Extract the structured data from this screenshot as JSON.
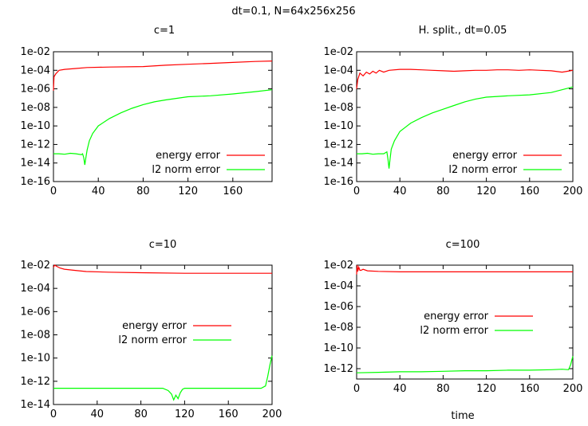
{
  "figure": {
    "suptitle": "dt=0.1, N=64x256x256"
  },
  "chart_data": [
    {
      "type": "line",
      "title": "c=1",
      "xlabel": "",
      "ylabel": "",
      "xlim": [
        0,
        195
      ],
      "ylim_exp": [
        -16,
        -2
      ],
      "yscale": "log",
      "xticks": [
        "0",
        "40",
        "80",
        "120",
        "160"
      ],
      "yticks": [
        "1e-16",
        "1e-14",
        "1e-12",
        "1e-10",
        "1e-08",
        "1e-06",
        "1e-04",
        "1e-02"
      ],
      "legend_position": "bottom-right",
      "series": [
        {
          "name": "energy error",
          "color": "#ff0000",
          "x": [
            0,
            0.5,
            2,
            5,
            10,
            20,
            30,
            50,
            80,
            100,
            120,
            140,
            160,
            180,
            195
          ],
          "log10_y": [
            -6.2,
            -4.7,
            -4.4,
            -4.0,
            -3.9,
            -3.8,
            -3.7,
            -3.65,
            -3.6,
            -3.45,
            -3.35,
            -3.25,
            -3.15,
            -3.05,
            -3.0
          ]
        },
        {
          "name": "l2 norm error",
          "color": "#00ff00",
          "x": [
            0,
            5,
            10,
            15,
            20,
            25,
            26,
            27,
            28,
            29,
            30,
            32,
            35,
            40,
            50,
            60,
            70,
            80,
            90,
            100,
            120,
            140,
            160,
            180,
            195
          ],
          "log10_y": [
            -13.0,
            -13.0,
            -13.05,
            -12.95,
            -13.0,
            -13.1,
            -13.0,
            -13.4,
            -14.2,
            -13.4,
            -12.6,
            -11.6,
            -10.8,
            -10.0,
            -9.2,
            -8.6,
            -8.1,
            -7.7,
            -7.4,
            -7.2,
            -6.85,
            -6.75,
            -6.55,
            -6.3,
            -6.1
          ]
        }
      ]
    },
    {
      "type": "line",
      "title": "H. split., dt=0.05",
      "xlabel": "",
      "ylabel": "",
      "xlim": [
        0,
        200
      ],
      "ylim_exp": [
        -16,
        -2
      ],
      "yscale": "log",
      "xticks": [
        "0",
        "40",
        "80",
        "120",
        "160",
        "200"
      ],
      "yticks": [
        "1e-16",
        "1e-14",
        "1e-12",
        "1e-10",
        "1e-08",
        "1e-06",
        "1e-04",
        "1e-02"
      ],
      "legend_position": "bottom-right",
      "series": [
        {
          "name": "energy error",
          "color": "#ff0000",
          "x": [
            0,
            1,
            3,
            6,
            9,
            12,
            15,
            18,
            21,
            25,
            30,
            40,
            50,
            60,
            70,
            80,
            90,
            100,
            110,
            120,
            130,
            140,
            150,
            160,
            170,
            180,
            190,
            195,
            200
          ],
          "log10_y": [
            -6.0,
            -5.0,
            -4.3,
            -4.6,
            -4.2,
            -4.4,
            -4.1,
            -4.3,
            -4.0,
            -4.2,
            -4.0,
            -3.9,
            -3.9,
            -3.95,
            -4.0,
            -4.05,
            -4.1,
            -4.05,
            -4.0,
            -4.0,
            -3.95,
            -3.95,
            -4.0,
            -3.95,
            -4.0,
            -4.05,
            -4.2,
            -4.1,
            -4.0
          ]
        },
        {
          "name": "l2 norm error",
          "color": "#00ff00",
          "x": [
            0,
            5,
            10,
            15,
            20,
            25,
            28,
            29,
            30,
            31,
            32,
            35,
            40,
            50,
            60,
            70,
            80,
            90,
            100,
            110,
            120,
            140,
            160,
            180,
            200
          ],
          "log10_y": [
            -13.0,
            -13.0,
            -12.95,
            -13.05,
            -13.0,
            -13.0,
            -12.8,
            -13.6,
            -14.6,
            -13.5,
            -12.5,
            -11.6,
            -10.6,
            -9.7,
            -9.1,
            -8.6,
            -8.2,
            -7.8,
            -7.4,
            -7.1,
            -6.9,
            -6.75,
            -6.65,
            -6.4,
            -5.8
          ]
        }
      ]
    },
    {
      "type": "line",
      "title": "c=10",
      "xlabel": "",
      "ylabel": "",
      "xlim": [
        0,
        200
      ],
      "ylim_exp": [
        -14,
        -2
      ],
      "yscale": "log",
      "xticks": [
        "0",
        "40",
        "80",
        "120",
        "160",
        "200"
      ],
      "yticks": [
        "1e-14",
        "1e-12",
        "1e-10",
        "1e-08",
        "1e-06",
        "1e-04",
        "1e-02"
      ],
      "legend_position": "center",
      "series": [
        {
          "name": "energy error",
          "color": "#ff0000",
          "x": [
            0,
            1,
            3,
            6,
            10,
            20,
            30,
            50,
            80,
            120,
            160,
            200
          ],
          "log10_y": [
            -2.2,
            -2.0,
            -2.1,
            -2.25,
            -2.35,
            -2.45,
            -2.55,
            -2.6,
            -2.65,
            -2.7,
            -2.7,
            -2.7
          ]
        },
        {
          "name": "l2 norm error",
          "color": "#00ff00",
          "x": [
            0,
            20,
            40,
            60,
            80,
            100,
            105,
            108,
            110,
            112,
            114,
            116,
            118,
            120,
            140,
            160,
            180,
            190,
            194,
            196,
            198,
            200
          ],
          "log10_y": [
            -12.6,
            -12.6,
            -12.6,
            -12.6,
            -12.6,
            -12.6,
            -12.8,
            -13.1,
            -13.6,
            -13.2,
            -13.5,
            -13.0,
            -12.7,
            -12.6,
            -12.6,
            -12.6,
            -12.6,
            -12.6,
            -12.4,
            -11.6,
            -10.6,
            -9.8
          ]
        }
      ]
    },
    {
      "type": "line",
      "title": "c=100",
      "xlabel": "time",
      "ylabel": "",
      "xlim": [
        0,
        200
      ],
      "ylim_exp": [
        -13,
        -2
      ],
      "yscale": "log",
      "xticks": [
        "0",
        "40",
        "80",
        "120",
        "160",
        "200"
      ],
      "yticks": [
        "1e-12",
        "1e-10",
        "1e-08",
        "1e-06",
        "1e-04",
        "1e-02"
      ],
      "legend_position": "center-right",
      "series": [
        {
          "name": "energy error",
          "color": "#ff0000",
          "x": [
            0,
            0.5,
            1,
            2,
            3,
            4,
            6,
            10,
            20,
            40,
            80,
            120,
            160,
            200
          ],
          "log10_y": [
            -2.9,
            -2.0,
            -2.6,
            -2.2,
            -2.5,
            -2.5,
            -2.4,
            -2.55,
            -2.6,
            -2.65,
            -2.65,
            -2.65,
            -2.65,
            -2.65
          ]
        },
        {
          "name": "l2 norm error",
          "color": "#00ff00",
          "x": [
            0,
            20,
            40,
            60,
            80,
            100,
            120,
            140,
            160,
            180,
            190,
            196,
            198,
            200
          ],
          "log10_y": [
            -12.4,
            -12.35,
            -12.3,
            -12.3,
            -12.25,
            -12.2,
            -12.2,
            -12.15,
            -12.15,
            -12.1,
            -12.05,
            -12.1,
            -11.6,
            -10.8
          ]
        }
      ]
    }
  ]
}
